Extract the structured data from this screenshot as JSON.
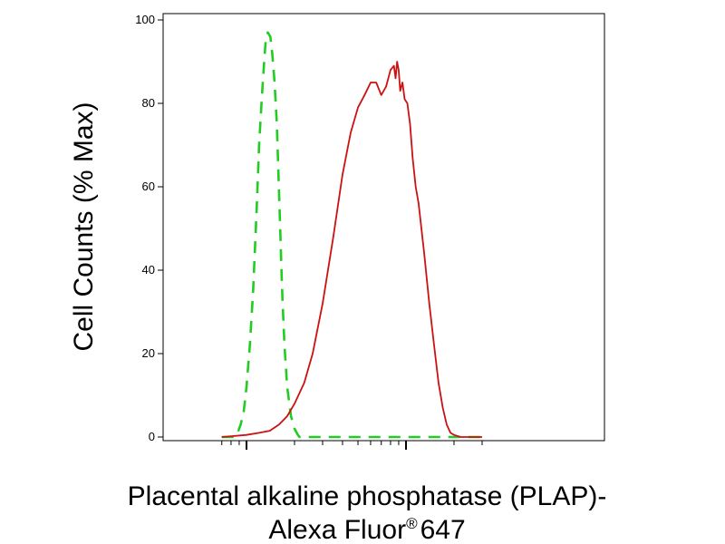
{
  "chart_data": {
    "type": "line",
    "title": "",
    "xlabel": {
      "line1": "Placental alkaline phosphatase (PLAP)-",
      "line2_main": "Alexa Fluor",
      "line2_sup": "®",
      "line2_end": "647"
    },
    "ylabel": "Cell Counts (% Max)",
    "x_scale": "log",
    "xlim": [
      0.07,
      3
    ],
    "ylim": [
      0,
      100
    ],
    "yticks": [
      "0",
      "20",
      "40",
      "60",
      "80",
      "100"
    ],
    "ytick_values": [
      0,
      20,
      40,
      60,
      80,
      100
    ],
    "x_major_ticks": [
      0.1,
      1
    ],
    "grid": false,
    "colors": {
      "control": "#22cc22",
      "sample": "#cc1111"
    },
    "series": [
      {
        "style": "dashed",
        "color": "#22cc22",
        "x": [
          0.07,
          0.085,
          0.088,
          0.092,
          0.096,
          0.1,
          0.105,
          0.11,
          0.116,
          0.12,
          0.125,
          0.129,
          0.132,
          0.136,
          0.141,
          0.145,
          0.15,
          0.155,
          0.159,
          0.162,
          0.165,
          0.168,
          0.173,
          0.18,
          0.19,
          0.2,
          0.21,
          0.215,
          0.23,
          0.26,
          0.3,
          0.5,
          1,
          3
        ],
        "y": [
          0,
          0,
          1,
          3,
          6,
          12,
          22,
          35,
          55,
          70,
          82,
          90,
          95,
          97,
          96,
          92,
          85,
          75,
          62,
          52,
          42,
          33,
          22,
          12,
          5,
          2,
          0.5,
          0,
          0,
          0,
          0,
          0,
          0,
          0
        ]
      },
      {
        "style": "solid",
        "color": "#cc1111",
        "x": [
          0.07,
          0.1,
          0.12,
          0.14,
          0.16,
          0.18,
          0.2,
          0.23,
          0.26,
          0.3,
          0.35,
          0.4,
          0.45,
          0.5,
          0.55,
          0.6,
          0.65,
          0.7,
          0.75,
          0.8,
          0.84,
          0.86,
          0.88,
          0.9,
          0.92,
          0.95,
          0.98,
          1.02,
          1.06,
          1.1,
          1.15,
          1.2,
          1.3,
          1.4,
          1.5,
          1.6,
          1.7,
          1.8,
          1.9,
          2.0,
          2.2,
          2.4,
          2.6,
          3.0
        ],
        "y": [
          0,
          0.5,
          1,
          1.5,
          3,
          5,
          8,
          13,
          20,
          32,
          48,
          63,
          73,
          79,
          82,
          85,
          85,
          82,
          84,
          88,
          89,
          86,
          90,
          88,
          83,
          85,
          81,
          80,
          75,
          67,
          60,
          56,
          44,
          32,
          22,
          13,
          7,
          3,
          1,
          0.5,
          0,
          0,
          0,
          0
        ]
      }
    ]
  }
}
